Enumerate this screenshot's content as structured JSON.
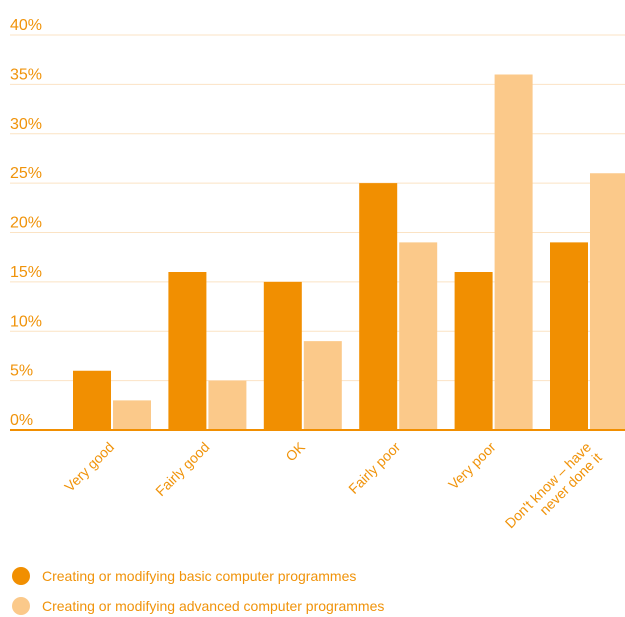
{
  "colors": {
    "basic": "#f18f01",
    "advanced": "#fbc98a",
    "text": "#f0930a",
    "grid": "#fbe3c4",
    "axis": "#f18f01"
  },
  "chart_data": {
    "type": "bar",
    "categories": [
      "Very good",
      "Fairly good",
      "OK",
      "Fairly poor",
      "Very poor",
      "Don't know – have never done it"
    ],
    "category_lines": [
      [
        "Very good"
      ],
      [
        "Fairly good"
      ],
      [
        "OK"
      ],
      [
        "Fairly poor"
      ],
      [
        "Very poor"
      ],
      [
        "Don't know – have",
        "never done it"
      ]
    ],
    "series": [
      {
        "name": "Creating or modifying basic computer programmes",
        "values": [
          6,
          16,
          15,
          25,
          16,
          19
        ]
      },
      {
        "name": "Creating or modifying advanced computer programmes",
        "values": [
          3,
          5,
          9,
          19,
          36,
          26
        ]
      }
    ],
    "y_ticks": [
      "0%",
      "5%",
      "10%",
      "15%",
      "20%",
      "25%",
      "30%",
      "35%",
      "40%"
    ],
    "ylim": [
      0,
      40
    ],
    "grid": true,
    "legend_position": "bottom-left",
    "title": "",
    "xlabel": "",
    "ylabel": ""
  },
  "legend": {
    "items": [
      {
        "label": "Creating or modifying basic computer programmes",
        "color": "#f18f01"
      },
      {
        "label": "Creating or modifying advanced computer programmes",
        "color": "#fbc98a"
      }
    ]
  }
}
